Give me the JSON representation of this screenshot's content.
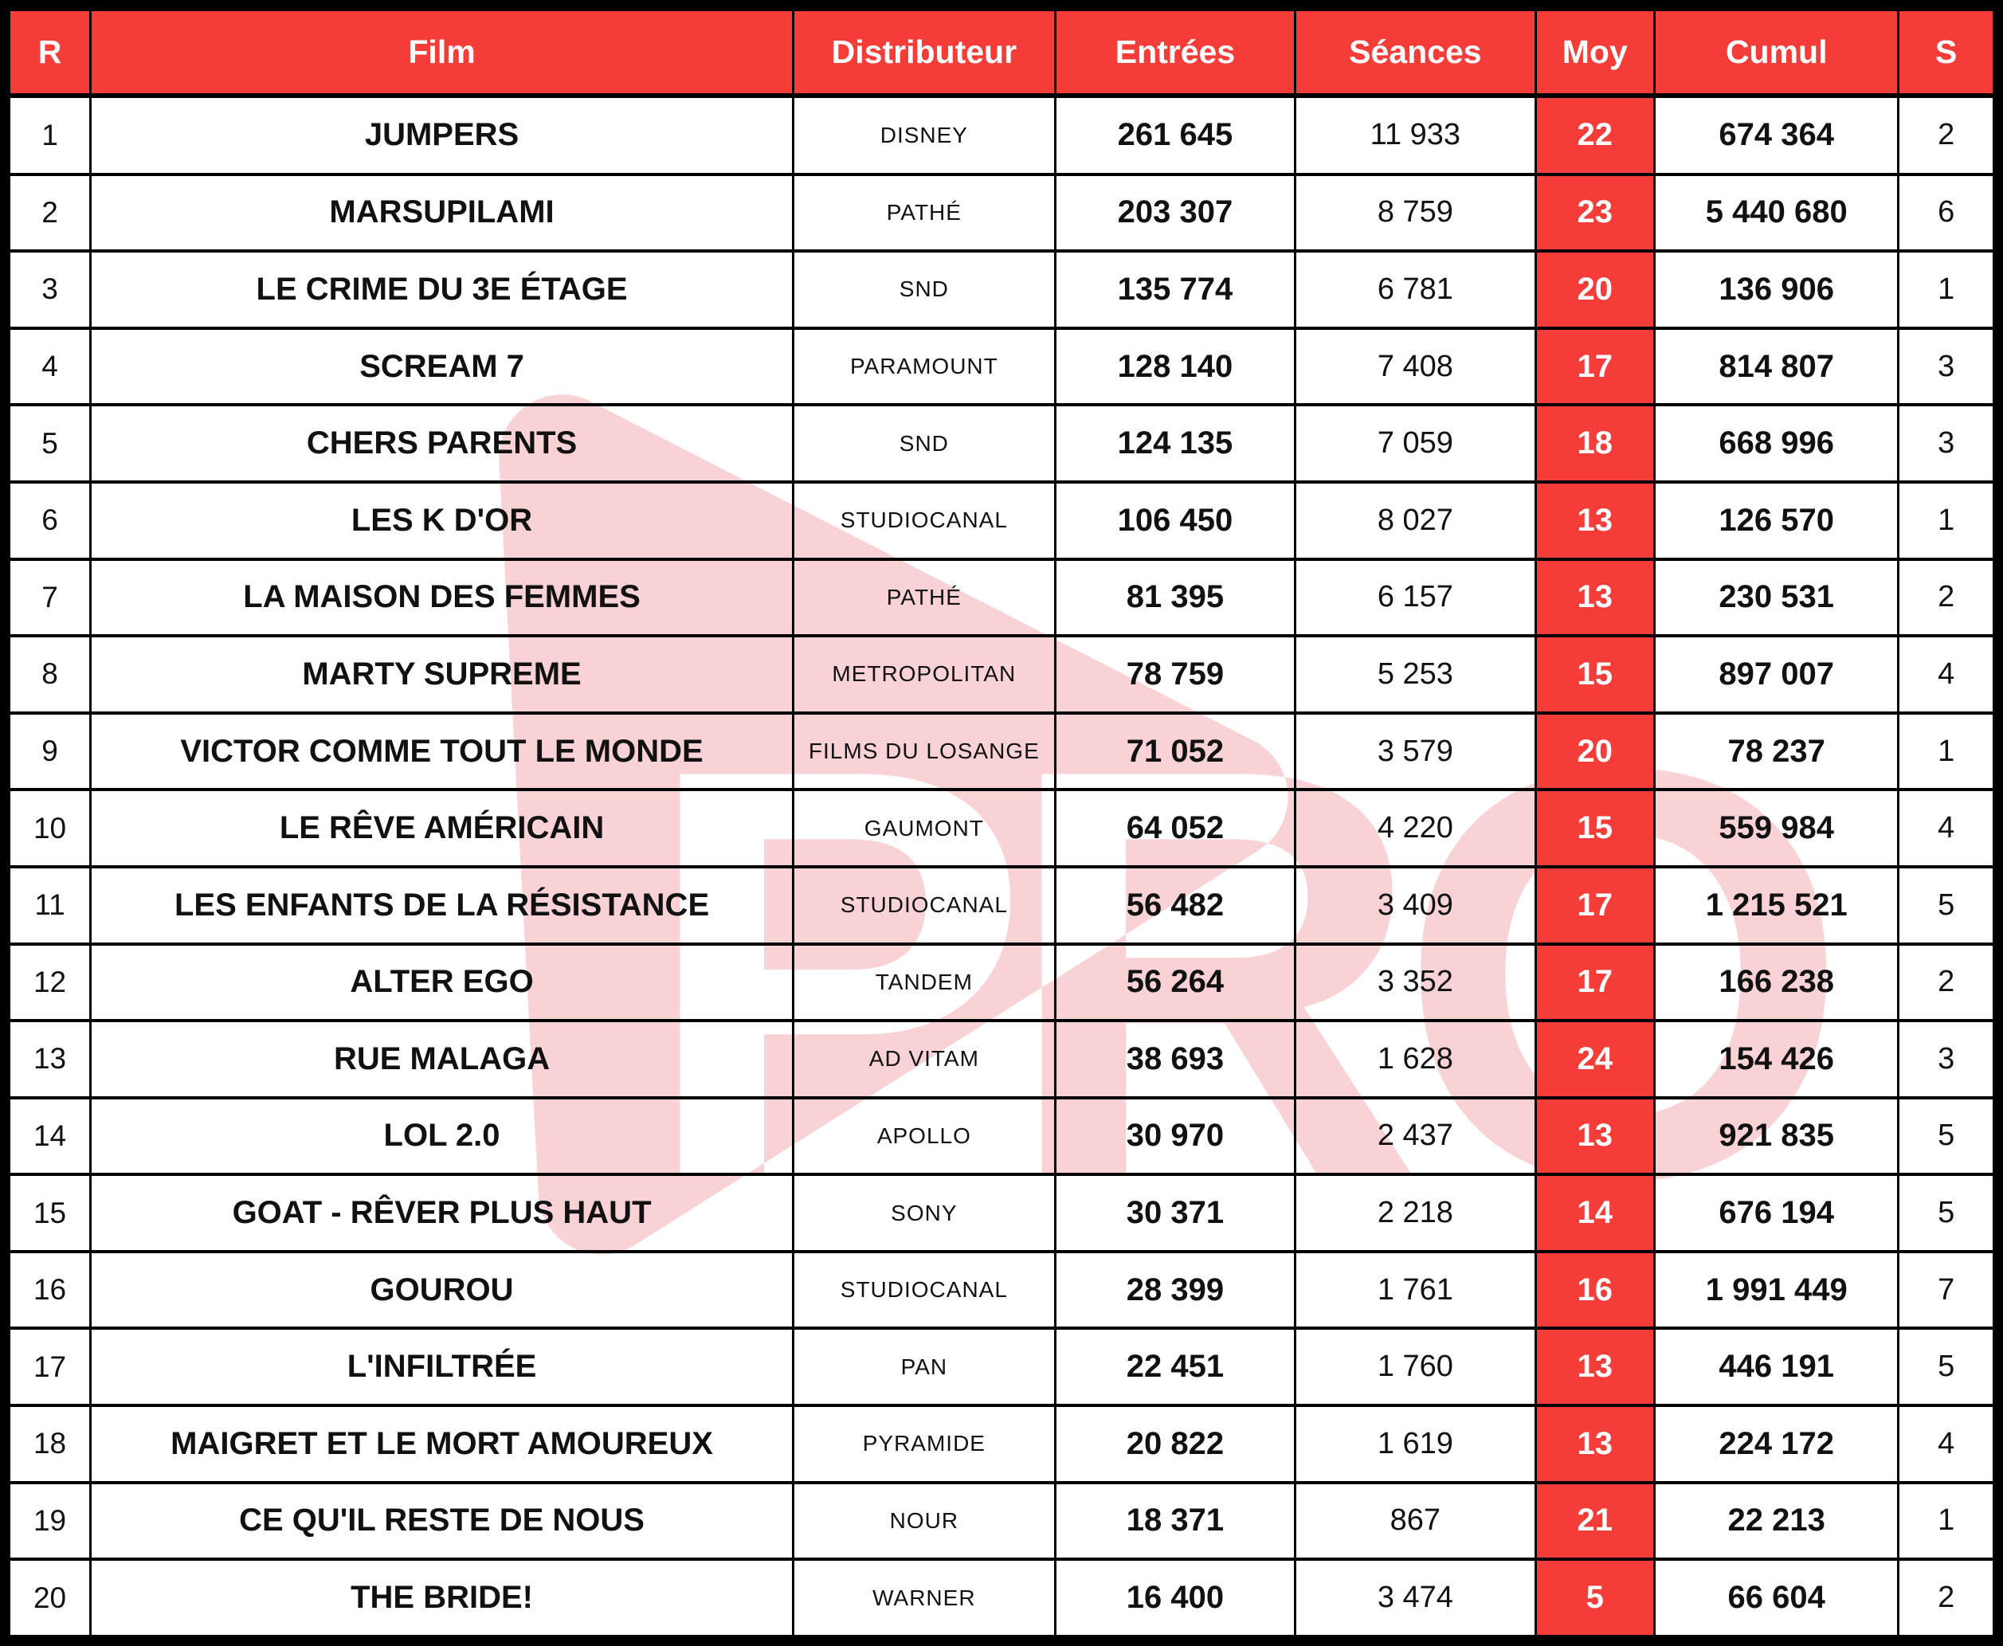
{
  "chart_data": {
    "type": "table",
    "columns": [
      {
        "key": "rank",
        "label": "R"
      },
      {
        "key": "film",
        "label": "Film"
      },
      {
        "key": "distributor",
        "label": "Distributeur"
      },
      {
        "key": "entries",
        "label": "Entrées"
      },
      {
        "key": "screenings",
        "label": "Séances"
      },
      {
        "key": "average",
        "label": "Moy"
      },
      {
        "key": "cumulative",
        "label": "Cumul"
      },
      {
        "key": "weeks",
        "label": "S"
      }
    ],
    "rows": [
      {
        "rank": "1",
        "film": "JUMPERS",
        "distributor": "DISNEY",
        "entries": "261 645",
        "screenings": "11 933",
        "average": "22",
        "cumulative": "674 364",
        "weeks": "2"
      },
      {
        "rank": "2",
        "film": "MARSUPILAMI",
        "distributor": "PATHÉ",
        "entries": "203 307",
        "screenings": "8 759",
        "average": "23",
        "cumulative": "5 440 680",
        "weeks": "6"
      },
      {
        "rank": "3",
        "film": "LE CRIME DU 3E ÉTAGE",
        "distributor": "SND",
        "entries": "135 774",
        "screenings": "6 781",
        "average": "20",
        "cumulative": "136 906",
        "weeks": "1"
      },
      {
        "rank": "4",
        "film": "SCREAM 7",
        "distributor": "PARAMOUNT",
        "entries": "128 140",
        "screenings": "7 408",
        "average": "17",
        "cumulative": "814 807",
        "weeks": "3"
      },
      {
        "rank": "5",
        "film": "CHERS PARENTS",
        "distributor": "SND",
        "entries": "124 135",
        "screenings": "7 059",
        "average": "18",
        "cumulative": "668 996",
        "weeks": "3"
      },
      {
        "rank": "6",
        "film": "LES K D'OR",
        "distributor": "STUDIOCANAL",
        "entries": "106 450",
        "screenings": "8 027",
        "average": "13",
        "cumulative": "126 570",
        "weeks": "1"
      },
      {
        "rank": "7",
        "film": "LA MAISON DES FEMMES",
        "distributor": "PATHÉ",
        "entries": "81 395",
        "screenings": "6 157",
        "average": "13",
        "cumulative": "230 531",
        "weeks": "2"
      },
      {
        "rank": "8",
        "film": "MARTY SUPREME",
        "distributor": "METROPOLITAN",
        "entries": "78 759",
        "screenings": "5 253",
        "average": "15",
        "cumulative": "897 007",
        "weeks": "4"
      },
      {
        "rank": "9",
        "film": "VICTOR COMME TOUT LE MONDE",
        "distributor": "FILMS DU LOSANGE",
        "entries": "71 052",
        "screenings": "3 579",
        "average": "20",
        "cumulative": "78 237",
        "weeks": "1"
      },
      {
        "rank": "10",
        "film": "LE RÊVE AMÉRICAIN",
        "distributor": "GAUMONT",
        "entries": "64 052",
        "screenings": "4 220",
        "average": "15",
        "cumulative": "559 984",
        "weeks": "4"
      },
      {
        "rank": "11",
        "film": "LES ENFANTS DE LA RÉSISTANCE",
        "distributor": "STUDIOCANAL",
        "entries": "56 482",
        "screenings": "3 409",
        "average": "17",
        "cumulative": "1 215 521",
        "weeks": "5"
      },
      {
        "rank": "12",
        "film": "ALTER EGO",
        "distributor": "TANDEM",
        "entries": "56 264",
        "screenings": "3 352",
        "average": "17",
        "cumulative": "166 238",
        "weeks": "2"
      },
      {
        "rank": "13",
        "film": "RUE MALAGA",
        "distributor": "AD VITAM",
        "entries": "38 693",
        "screenings": "1 628",
        "average": "24",
        "cumulative": "154 426",
        "weeks": "3"
      },
      {
        "rank": "14",
        "film": "LOL 2.0",
        "distributor": "APOLLO",
        "entries": "30 970",
        "screenings": "2 437",
        "average": "13",
        "cumulative": "921 835",
        "weeks": "5"
      },
      {
        "rank": "15",
        "film": "GOAT - RÊVER PLUS HAUT",
        "distributor": "SONY",
        "entries": "30 371",
        "screenings": "2 218",
        "average": "14",
        "cumulative": "676 194",
        "weeks": "5"
      },
      {
        "rank": "16",
        "film": "GOUROU",
        "distributor": "STUDIOCANAL",
        "entries": "28 399",
        "screenings": "1 761",
        "average": "16",
        "cumulative": "1 991 449",
        "weeks": "7"
      },
      {
        "rank": "17",
        "film": "L'INFILTRÉE",
        "distributor": "PAN",
        "entries": "22 451",
        "screenings": "1 760",
        "average": "13",
        "cumulative": "446 191",
        "weeks": "5"
      },
      {
        "rank": "18",
        "film": "MAIGRET ET LE MORT AMOUREUX",
        "distributor": "PYRAMIDE",
        "entries": "20 822",
        "screenings": "1 619",
        "average": "13",
        "cumulative": "224 172",
        "weeks": "4"
      },
      {
        "rank": "19",
        "film": "CE QU'IL RESTE DE NOUS",
        "distributor": "NOUR",
        "entries": "18 371",
        "screenings": "867",
        "average": "21",
        "cumulative": "22 213",
        "weeks": "1"
      },
      {
        "rank": "20",
        "film": "THE BRIDE!",
        "distributor": "WARNER",
        "entries": "16 400",
        "screenings": "3 474",
        "average": "5",
        "cumulative": "66 604",
        "weeks": "2"
      }
    ]
  },
  "watermark": {
    "text": "PRO"
  },
  "colors": {
    "header_red": "#f43c38",
    "watermark_pink": "#f9d2d6",
    "border_black": "#000000",
    "body_text": "#111111"
  }
}
